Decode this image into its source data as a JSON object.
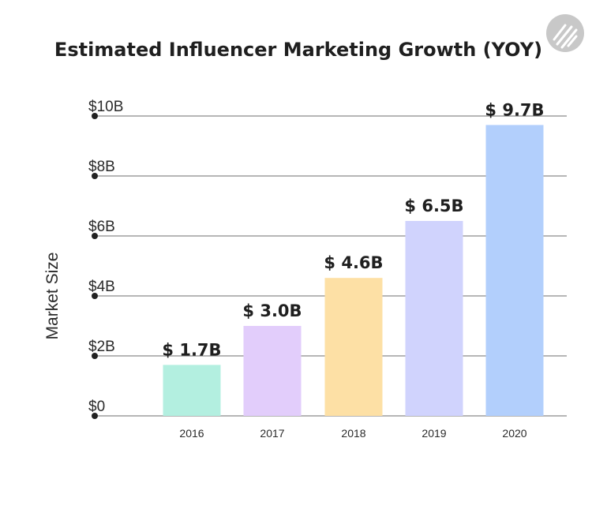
{
  "chart_data": {
    "type": "bar",
    "title": "Estimated Influencer Marketing Growth (YOY)",
    "xlabel": "",
    "ylabel": "Market Size",
    "categories": [
      "2016",
      "2017",
      "2018",
      "2019",
      "2020"
    ],
    "values": [
      1.7,
      3.0,
      4.6,
      6.5,
      9.7
    ],
    "data_labels": [
      "$ 1.7B",
      "$ 3.0B",
      "$ 4.6B",
      "$ 6.5B",
      "$ 9.7B"
    ],
    "bar_colors": [
      "#b3efe0",
      "#e2cdfb",
      "#fde0a5",
      "#d0d3fd",
      "#b2cffc"
    ],
    "ylim": [
      0,
      10
    ],
    "yticks": [
      0,
      2,
      4,
      6,
      8,
      10
    ],
    "ytick_labels": [
      "$0",
      "$2B",
      "$4B",
      "$6B",
      "$8B",
      "$10B"
    ],
    "grid": true,
    "legend": "none"
  },
  "logo": {
    "icon": "brand-logo-icon",
    "color": "#c8c8c8"
  }
}
